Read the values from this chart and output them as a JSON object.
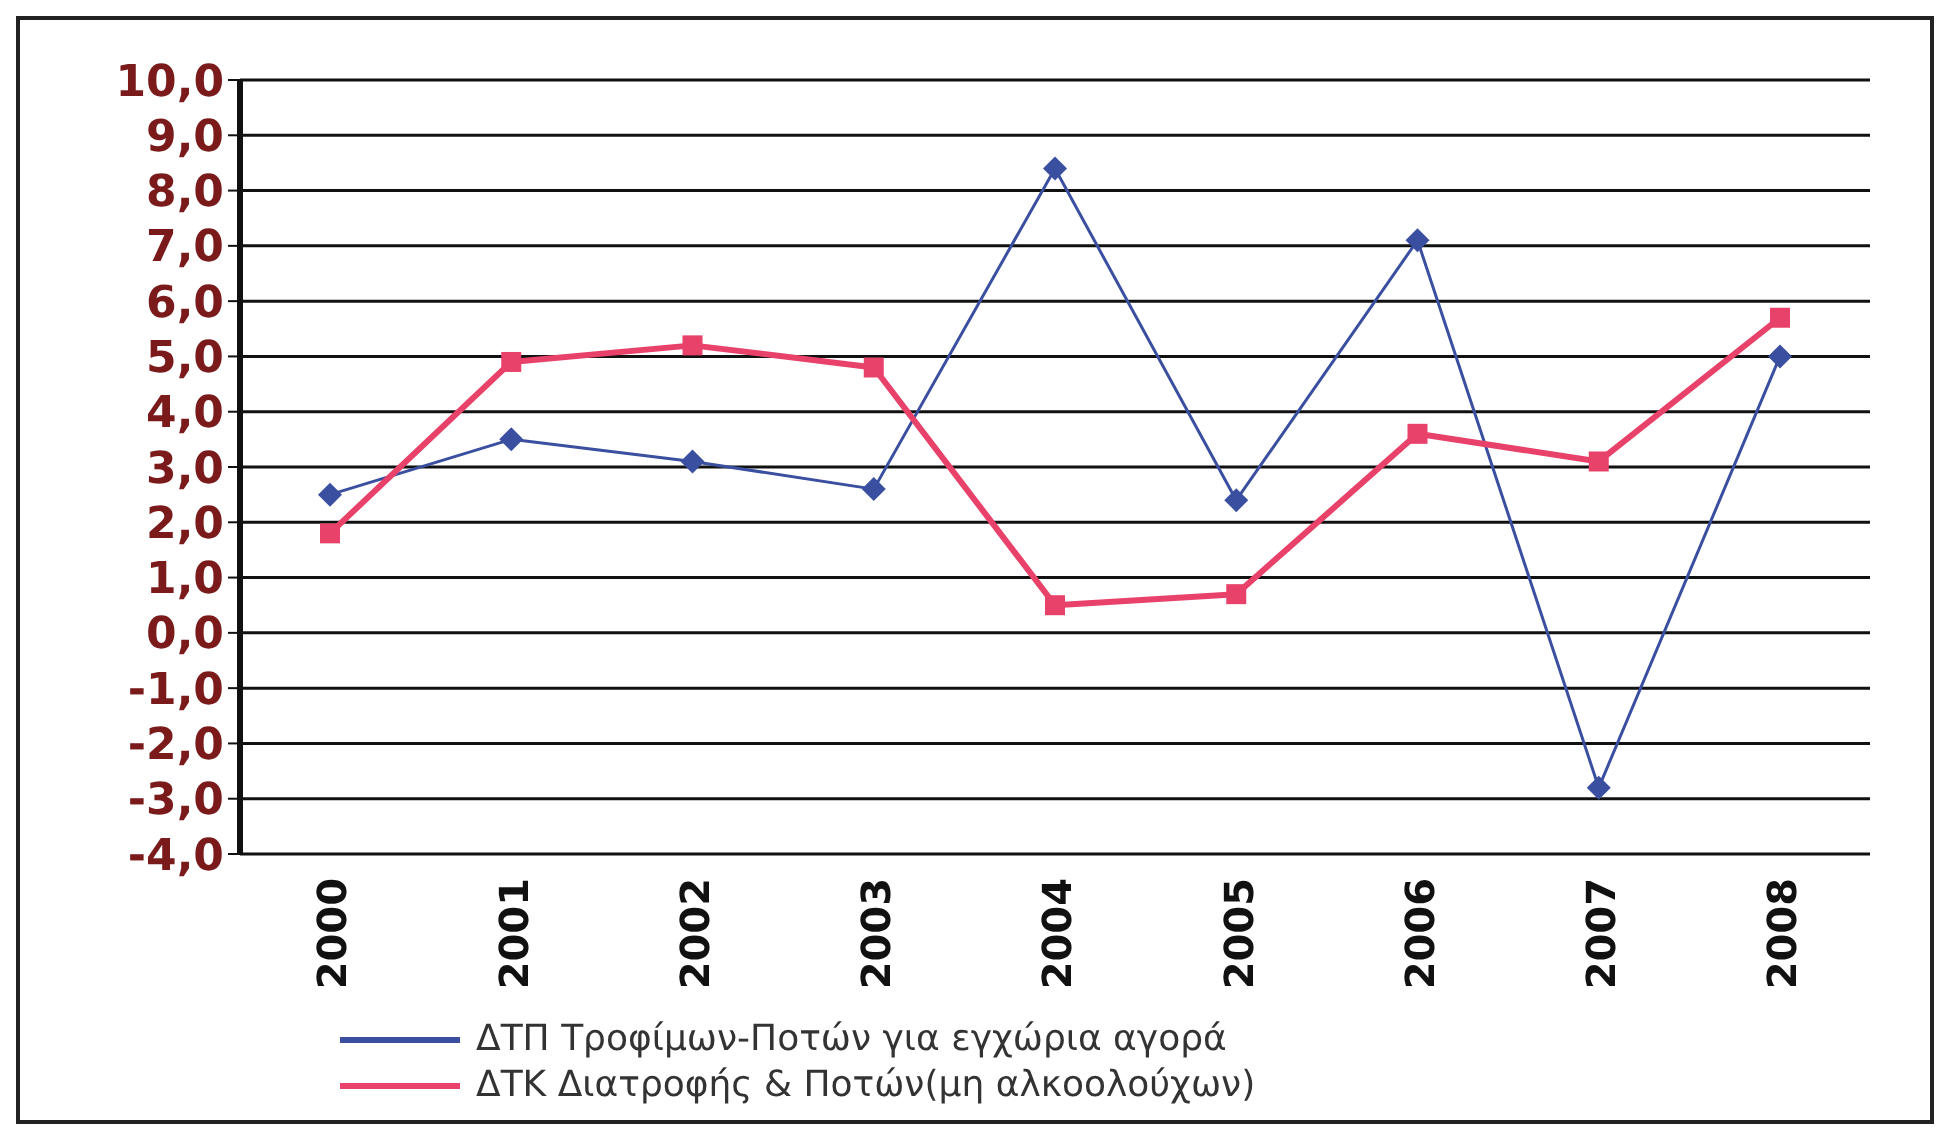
{
  "chart_data": {
    "type": "line",
    "categories": [
      "2000",
      "2001",
      "2002",
      "2003",
      "2004",
      "2005",
      "2006",
      "2007",
      "2008"
    ],
    "series": [
      {
        "name": "ΔΤΠ Τροφίμων-Ποτών για εγχώρια αγορά",
        "color": "#3a4fa0",
        "marker": "diamond",
        "values": [
          2.5,
          3.5,
          3.1,
          2.6,
          8.4,
          2.4,
          7.1,
          -2.8,
          5.0
        ]
      },
      {
        "name": "ΔΤΚ Διατροφής & Ποτών(μη αλκοολούχων)",
        "color": "#e8426a",
        "marker": "square",
        "values": [
          1.8,
          4.9,
          5.2,
          4.8,
          0.5,
          0.7,
          3.6,
          3.1,
          5.7
        ]
      }
    ],
    "ylim": [
      -4,
      10
    ],
    "yticks": [
      {
        "value": -4,
        "label": "-4,0"
      },
      {
        "value": -3,
        "label": "-3,0"
      },
      {
        "value": -2,
        "label": "-2,0"
      },
      {
        "value": -1,
        "label": "-1,0"
      },
      {
        "value": 0,
        "label": "0,0"
      },
      {
        "value": 1,
        "label": "1,0"
      },
      {
        "value": 2,
        "label": "2,0"
      },
      {
        "value": 3,
        "label": "3,0"
      },
      {
        "value": 4,
        "label": "4,0"
      },
      {
        "value": 5,
        "label": "5,0"
      },
      {
        "value": 6,
        "label": "6,0"
      },
      {
        "value": 7,
        "label": "7,0"
      },
      {
        "value": 8,
        "label": "8,0"
      },
      {
        "value": 9,
        "label": "9,0"
      },
      {
        "value": 10,
        "label": "10,0"
      }
    ],
    "grid": "y",
    "legend": "bottom"
  }
}
